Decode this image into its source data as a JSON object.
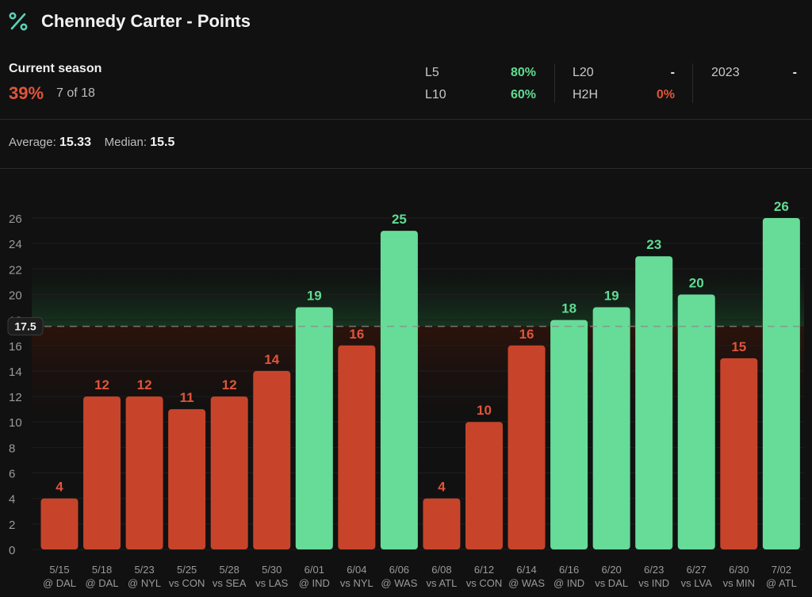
{
  "header": {
    "title": "Chennedy Carter - Points",
    "icon": "percent-icon"
  },
  "season": {
    "label": "Current season",
    "pct": "39%",
    "count": "7 of 18"
  },
  "splits": {
    "l5": {
      "label": "L5",
      "value": "80%"
    },
    "l10": {
      "label": "L10",
      "value": "60%"
    },
    "l20": {
      "label": "L20",
      "value": "-"
    },
    "h2h": {
      "label": "H2H",
      "value": "0%"
    },
    "y2023": {
      "label": "2023",
      "value": "-"
    }
  },
  "summary": {
    "avg_label": "Average:",
    "avg_value": "15.33",
    "median_label": "Median:",
    "median_value": "15.5"
  },
  "colors": {
    "over": "#66dc98",
    "under": "#c7442a",
    "over_text": "#5fdc93",
    "under_text": "#e0553a"
  },
  "chart_data": {
    "type": "bar",
    "title": "Chennedy Carter - Points",
    "line": 17.5,
    "line_label": "17.5",
    "ylim": [
      0,
      26
    ],
    "yticks": [
      0,
      2,
      4,
      6,
      8,
      10,
      12,
      14,
      16,
      18,
      20,
      22,
      24,
      26
    ],
    "categories": [
      {
        "date": "5/15",
        "opp": "@ DAL"
      },
      {
        "date": "5/18",
        "opp": "@ DAL"
      },
      {
        "date": "5/23",
        "opp": "@ NYL"
      },
      {
        "date": "5/25",
        "opp": "vs CON"
      },
      {
        "date": "5/28",
        "opp": "vs SEA"
      },
      {
        "date": "5/30",
        "opp": "vs LAS"
      },
      {
        "date": "6/01",
        "opp": "@ IND"
      },
      {
        "date": "6/04",
        "opp": "vs NYL"
      },
      {
        "date": "6/06",
        "opp": "@ WAS"
      },
      {
        "date": "6/08",
        "opp": "vs ATL"
      },
      {
        "date": "6/12",
        "opp": "vs CON"
      },
      {
        "date": "6/14",
        "opp": "@ WAS"
      },
      {
        "date": "6/16",
        "opp": "@ IND"
      },
      {
        "date": "6/20",
        "opp": "vs DAL"
      },
      {
        "date": "6/23",
        "opp": "vs IND"
      },
      {
        "date": "6/27",
        "opp": "vs LVA"
      },
      {
        "date": "6/30",
        "opp": "vs MIN"
      },
      {
        "date": "7/02",
        "opp": "@ ATL"
      }
    ],
    "values": [
      4,
      12,
      12,
      11,
      12,
      14,
      19,
      16,
      25,
      4,
      10,
      16,
      18,
      19,
      23,
      20,
      15,
      26
    ]
  }
}
